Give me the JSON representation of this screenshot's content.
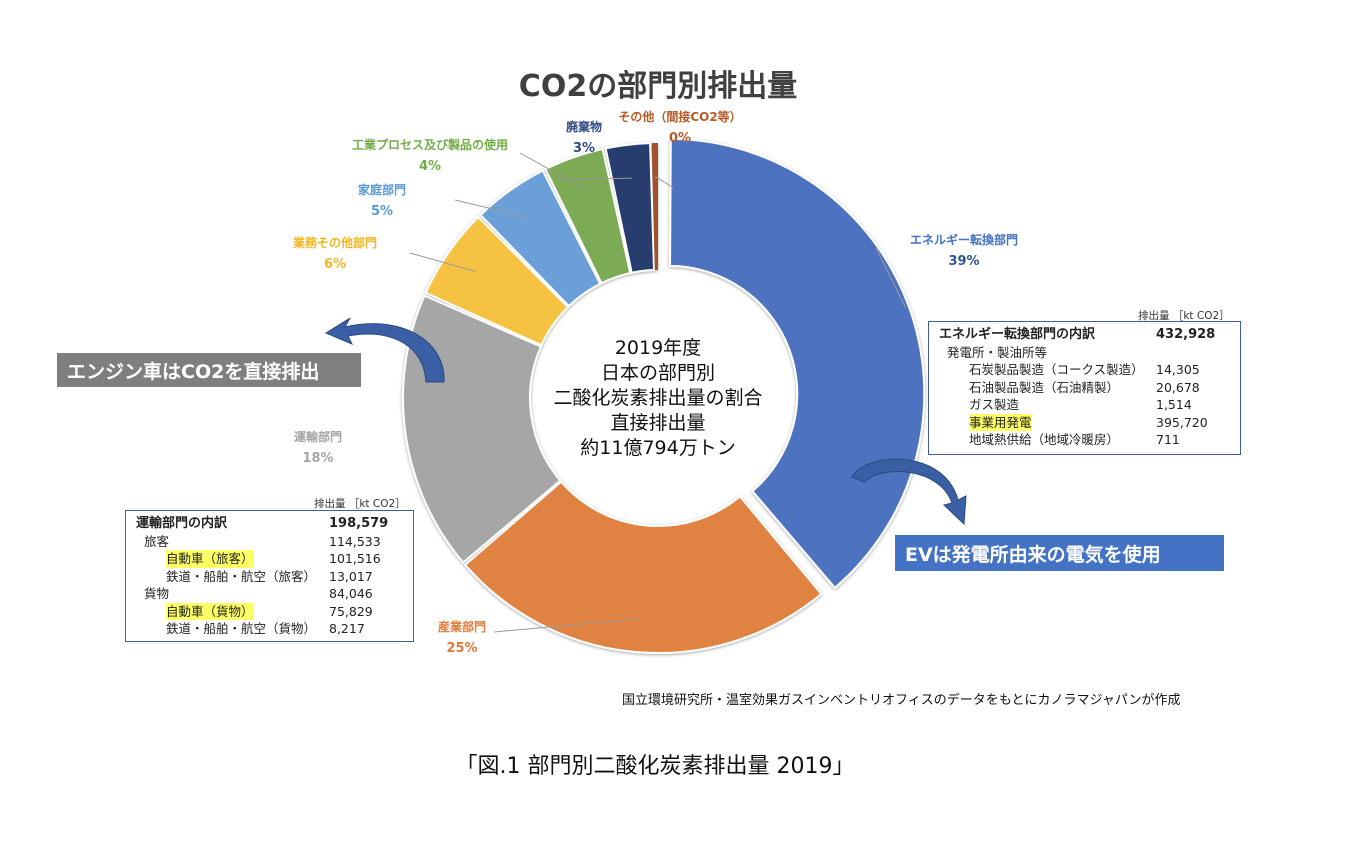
{
  "chart_data": {
    "type": "pie",
    "title": "CO2の部門別排出量",
    "center_lines": [
      "2019年度",
      "日本の部門別",
      "二酸化炭素排出量の割合",
      "直接排出量",
      "約11億794万トン"
    ],
    "slices": [
      {
        "label": "エネルギー転換部門",
        "value": 39,
        "pct": "39%",
        "color": "#4e73c0",
        "pct_color": "#2f5597",
        "label_color": "#4472c4"
      },
      {
        "label": "産業部門",
        "value": 25,
        "pct": "25%",
        "color": "#e08343",
        "pct_color": "#e07b3a",
        "label_color": "#e07b3a"
      },
      {
        "label": "運輸部門",
        "value": 18,
        "pct": "18%",
        "color": "#a6a6a6",
        "pct_color": "#a6a6a6",
        "label_color": "#a6a6a6"
      },
      {
        "label": "業務その他部門",
        "value": 6,
        "pct": "6%",
        "color": "#f5c242",
        "pct_color": "#f3b61f",
        "label_color": "#f3b61f"
      },
      {
        "label": "家庭部門",
        "value": 5,
        "pct": "5%",
        "color": "#6a9fd8",
        "pct_color": "#5b9bd5",
        "label_color": "#5b9bd5"
      },
      {
        "label": "工業プロセス及び製品の使用",
        "value": 4,
        "pct": "4%",
        "color": "#7dab55",
        "pct_color": "#70ad47",
        "label_color": "#70ad47"
      },
      {
        "label": "廃棄物",
        "value": 3,
        "pct": "3%",
        "color": "#263d6e",
        "pct_color": "#2f4a85",
        "label_color": "#2f4a85"
      },
      {
        "label": "その他（間接CO2等）",
        "value": 0,
        "pct": "0%",
        "color": "#a0522d",
        "pct_color": "#b85b28",
        "label_color": "#b85b28"
      }
    ]
  },
  "energy_table": {
    "unit": "排出量 ［kt CO2］",
    "title": "エネルギー転換部門の内訳",
    "total": "432,928",
    "rows": [
      {
        "label": "発電所・製油所等",
        "value": "",
        "indent": 1,
        "highlight": false
      },
      {
        "label": "石炭製品製造（コークス製造）",
        "value": "14,305",
        "indent": 2,
        "highlight": false
      },
      {
        "label": "石油製品製造（石油精製）",
        "value": "20,678",
        "indent": 2,
        "highlight": false
      },
      {
        "label": "ガス製造",
        "value": "1,514",
        "indent": 2,
        "highlight": false
      },
      {
        "label": "事業用発電",
        "value": "395,720",
        "indent": 2,
        "highlight": true
      },
      {
        "label": "地域熱供給（地域冷暖房）",
        "value": "711",
        "indent": 2,
        "highlight": false
      }
    ]
  },
  "transport_table": {
    "unit": "排出量 ［kt CO2］",
    "title": "運輸部門の内訳",
    "total": "198,579",
    "rows": [
      {
        "label": "旅客",
        "value": "114,533",
        "indent": 1,
        "highlight": false
      },
      {
        "label": "自動車（旅客）",
        "value": "101,516",
        "indent": 2,
        "highlight": true
      },
      {
        "label": "鉄道・船舶・航空（旅客）",
        "value": "13,017",
        "indent": 2,
        "highlight": false
      },
      {
        "label": "貨物",
        "value": "84,046",
        "indent": 1,
        "highlight": false
      },
      {
        "label": "自動車（貨物）",
        "value": "75,829",
        "indent": 2,
        "highlight": true
      },
      {
        "label": "鉄道・船舶・航空（貨物）",
        "value": "8,217",
        "indent": 2,
        "highlight": false
      }
    ]
  },
  "banners": {
    "engine": "エンジン車はCO2を直接排出",
    "ev": "EVは発電所由来の電気を使用"
  },
  "colors": {
    "engine_banner": "#7f7f7f",
    "ev_banner": "#4472c4",
    "arrow_fill": "#3a5fa5"
  },
  "source": "国立環境研究所・温室効果ガスインベントリオフィスのデータをもとにカノラマジャパンが作成",
  "caption": "「図.1  部門別二酸化炭素排出量 2019」"
}
